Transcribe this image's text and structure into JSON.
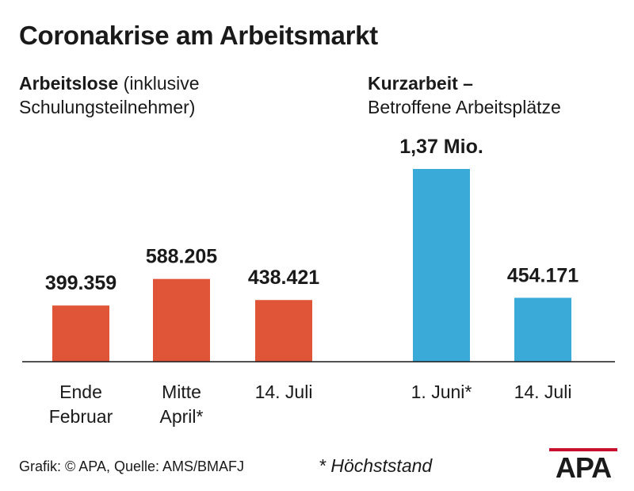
{
  "title": "Coronakrise am Arbeitsmarkt",
  "panels": {
    "left": {
      "heading_bold": "Arbeitslose",
      "heading_rest": " (inklusive",
      "heading_line2": "Schulungsteilnehmer)"
    },
    "right": {
      "heading_bold": "Kurzarbeit –",
      "heading_line2": "Betroffene Arbeitsplätze"
    }
  },
  "chart_data": [
    {
      "type": "bar",
      "title": "Arbeitslose (inklusive Schulungsteilnehmer)",
      "categories": [
        "Ende Februar",
        "Mitte April*",
        "14. Juli"
      ],
      "category_lines": [
        [
          "Ende",
          "Februar"
        ],
        [
          "Mitte",
          "April*"
        ],
        [
          "14. Juli"
        ]
      ],
      "values": [
        399359,
        588205,
        438421
      ],
      "data_labels": [
        "399.359",
        "588.205",
        "438.421"
      ],
      "color": "#e05538",
      "ylim": [
        0,
        1370000
      ]
    },
    {
      "type": "bar",
      "title": "Kurzarbeit – Betroffene Arbeitsplätze",
      "categories": [
        "1. Juni*",
        "14. Juli"
      ],
      "category_lines": [
        [
          "1. Juni*"
        ],
        [
          "14. Juli"
        ]
      ],
      "values": [
        1370000,
        454171
      ],
      "data_labels": [
        "1,37 Mio.",
        "454.171"
      ],
      "color": "#3aaad9",
      "ylim": [
        0,
        1370000
      ]
    }
  ],
  "footer": {
    "source": "Grafik: © APA, Quelle: AMS/BMAFJ",
    "footnote": "* Höchststand"
  },
  "logo": {
    "text": "APA",
    "color": "#c8102e"
  }
}
